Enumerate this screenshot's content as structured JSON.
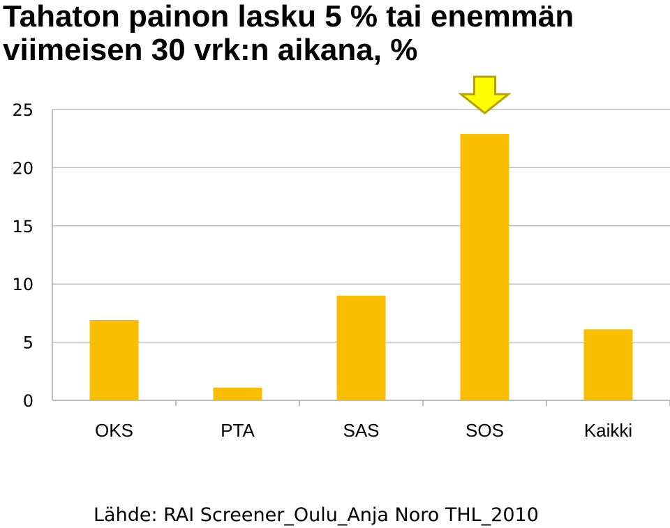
{
  "chart_data": {
    "type": "bar",
    "title_line1": "Tahaton painon lasku 5 % tai enemmän",
    "title_line2": "viimeisen 30 vrk:n aikana, %",
    "categories": [
      "OKS",
      "PTA",
      "SAS",
      "SOS",
      "Kaikki"
    ],
    "values": [
      6.9,
      1.1,
      9.0,
      22.9,
      6.1
    ],
    "ylim": [
      0,
      25
    ],
    "yticks": [
      "0",
      "5",
      "10",
      "15",
      "20",
      "25"
    ],
    "ytick_values": [
      0,
      5,
      10,
      15,
      20,
      25
    ],
    "grid": true,
    "bar_color": "#F9BE00",
    "highlight_category": "SOS",
    "highlight_arrow_color": "#FFFF00",
    "highlight_arrow_stroke": "#B8A000"
  },
  "source": "Lähde: RAI Screener_Oulu_Anja Noro THL_2010"
}
